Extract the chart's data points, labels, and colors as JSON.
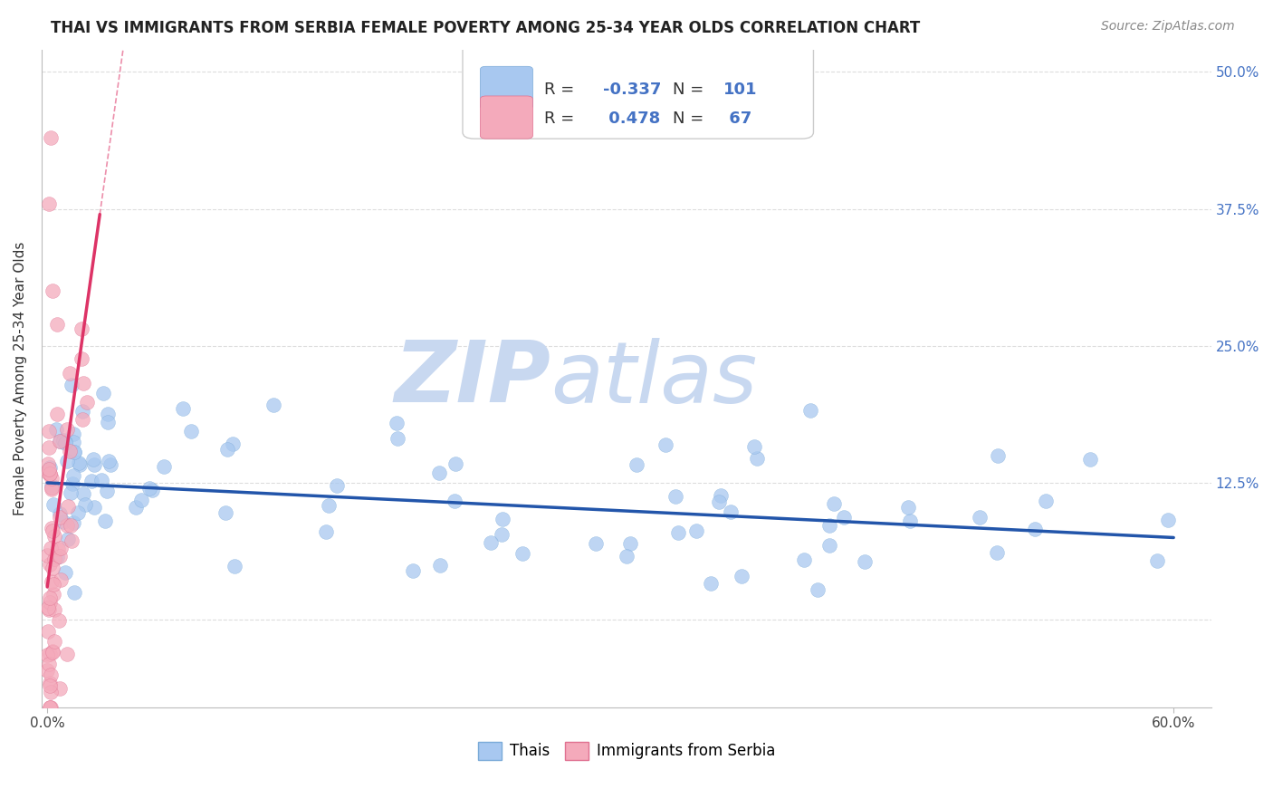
{
  "title": "THAI VS IMMIGRANTS FROM SERBIA FEMALE POVERTY AMONG 25-34 YEAR OLDS CORRELATION CHART",
  "source": "Source: ZipAtlas.com",
  "ylabel": "Female Poverty Among 25-34 Year Olds",
  "xlim": [
    -0.003,
    0.62
  ],
  "ylim": [
    -0.08,
    0.52
  ],
  "yticks": [
    0.0,
    0.125,
    0.25,
    0.375,
    0.5
  ],
  "ytick_labels_right": [
    "",
    "12.5%",
    "25.0%",
    "37.5%",
    "50.0%"
  ],
  "xtick_positions": [
    0.0,
    0.6
  ],
  "xtick_labels": [
    "0.0%",
    "60.0%"
  ],
  "blue_color": "#A8C8F0",
  "blue_edge_color": "#7AAAD8",
  "pink_color": "#F4AABB",
  "pink_edge_color": "#E07090",
  "blue_line_color": "#2255AA",
  "pink_line_color": "#DD3366",
  "watermark_zip": "ZIP",
  "watermark_atlas": "atlas",
  "watermark_color": "#C8D8F0",
  "background_color": "#FFFFFF",
  "grid_color": "#DDDDDD",
  "blue_R": -0.337,
  "blue_N": 101,
  "pink_R": 0.478,
  "pink_N": 67,
  "seed": 123,
  "title_fontsize": 12,
  "source_fontsize": 10,
  "legend_fontsize": 13,
  "axis_label_fontsize": 11,
  "tick_fontsize": 11
}
